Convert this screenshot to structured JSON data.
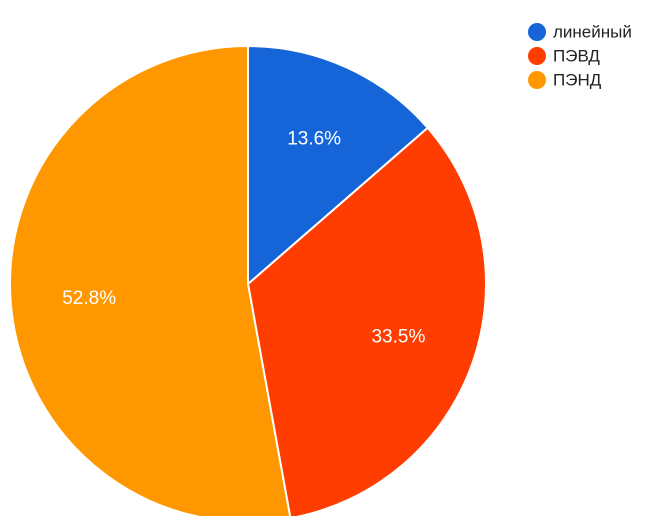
{
  "chart_data": {
    "type": "pie",
    "slices": [
      {
        "label": "линейный",
        "value": 13.6,
        "value_label": "13.6%",
        "color": "#1565d8"
      },
      {
        "label": "ПЭВД",
        "value": 33.5,
        "value_label": "33.5%",
        "color": "#ff3d00"
      },
      {
        "label": "ПЭНД",
        "value": 52.8,
        "value_label": "52.8%",
        "color": "#ff9800"
      }
    ],
    "start_angle_deg": 0,
    "direction": "clockwise",
    "legend_position": "top-right",
    "value_labels_inside": true
  }
}
